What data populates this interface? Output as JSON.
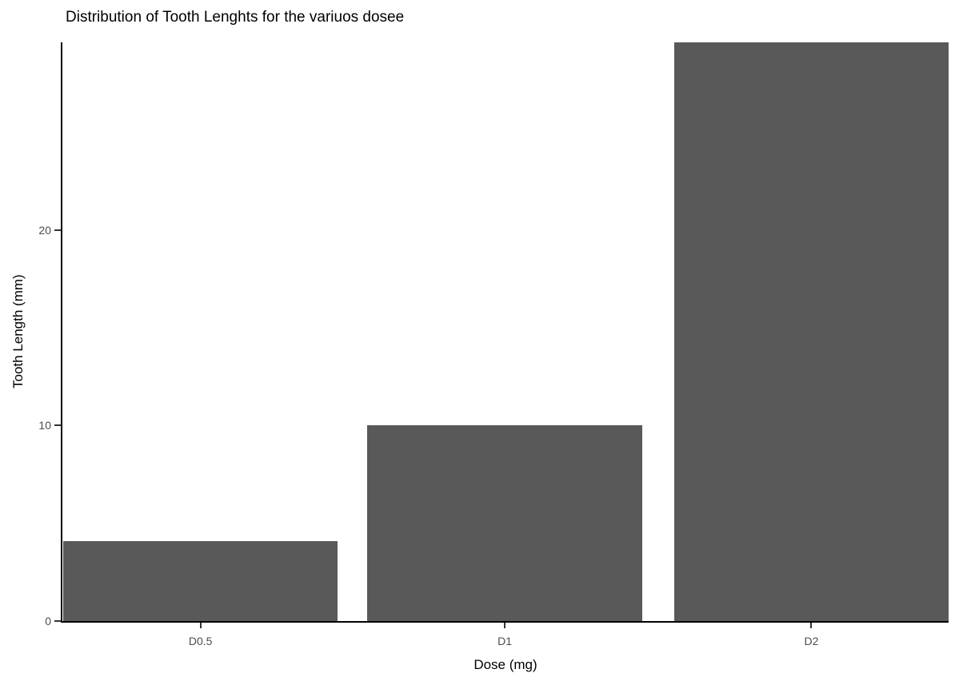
{
  "chart_data": {
    "type": "bar",
    "title": "Distribution of Tooth Lenghts for the variuos dosee",
    "xlabel": "Dose (mg)",
    "ylabel": "Tooth Length (mm)",
    "categories": [
      "D0.5",
      "D1",
      "D2"
    ],
    "values": [
      4.1,
      10,
      29.6
    ],
    "ylim": [
      0,
      29.6
    ],
    "yticks": [
      0,
      10,
      20
    ],
    "bar_color": "#595959",
    "axis_line_color": "#000000",
    "tick_mark_color": "#333333",
    "tick_label_color": "#4d4d4d",
    "title_color": "#000000",
    "background": "#ffffff",
    "grid": "off",
    "legend": "none"
  }
}
